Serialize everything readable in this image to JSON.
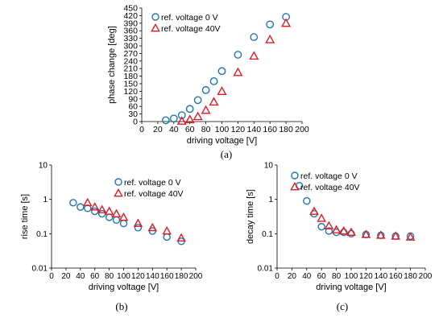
{
  "chart_data": [
    {
      "id": "a",
      "type": "scatter",
      "caption": "(a)",
      "xlabel": "driving voltage [V]",
      "ylabel": "phase change [deg]",
      "xlim": [
        0,
        200
      ],
      "ylim": [
        0,
        450
      ],
      "xticks": [
        0,
        20,
        40,
        60,
        80,
        100,
        120,
        140,
        160,
        180,
        200
      ],
      "yticks": [
        0,
        30,
        60,
        90,
        120,
        150,
        180,
        210,
        240,
        270,
        300,
        330,
        360,
        390,
        420,
        450
      ],
      "yscale": "linear",
      "legend": "top-left",
      "grid": false,
      "series": [
        {
          "name": "ref. voltage  0 V",
          "marker": "circle",
          "color": "#1f77b4",
          "x": [
            30,
            40,
            50,
            60,
            70,
            80,
            90,
            100,
            120,
            140,
            160,
            180
          ],
          "y": [
            5,
            12,
            25,
            50,
            85,
            125,
            160,
            200,
            265,
            335,
            385,
            415
          ]
        },
        {
          "name": "ref. voltage 40V",
          "marker": "triangle",
          "color": "#e01b24",
          "x": [
            50,
            60,
            70,
            80,
            90,
            100,
            120,
            140,
            160,
            180
          ],
          "y": [
            2,
            8,
            20,
            45,
            78,
            120,
            195,
            260,
            325,
            390
          ]
        }
      ]
    },
    {
      "id": "b",
      "type": "scatter",
      "caption": "(b)",
      "xlabel": "driving voltage [V]",
      "ylabel": "rise time [s]",
      "xlim": [
        0,
        200
      ],
      "ylim": [
        0.01,
        10
      ],
      "xticks": [
        0,
        20,
        40,
        60,
        80,
        100,
        120,
        140,
        160,
        180,
        200
      ],
      "yticks": [
        0.01,
        0.1,
        1,
        10
      ],
      "ytick_labels": [
        "0.01",
        "0.1",
        "1",
        "10"
      ],
      "yscale": "log",
      "legend": "top-right",
      "grid": false,
      "series": [
        {
          "name": "ref. voltage  0 V",
          "marker": "circle",
          "color": "#1f77b4",
          "x": [
            30,
            40,
            50,
            60,
            70,
            80,
            90,
            100,
            120,
            140,
            160,
            180
          ],
          "y": [
            0.8,
            0.6,
            0.55,
            0.45,
            0.38,
            0.3,
            0.25,
            0.2,
            0.15,
            0.12,
            0.08,
            0.06
          ]
        },
        {
          "name": "ref. voltage 40V",
          "marker": "triangle",
          "color": "#e01b24",
          "x": [
            50,
            60,
            70,
            80,
            90,
            100,
            120,
            140,
            160,
            180
          ],
          "y": [
            0.8,
            0.6,
            0.5,
            0.45,
            0.38,
            0.3,
            0.2,
            0.15,
            0.12,
            0.075
          ]
        }
      ]
    },
    {
      "id": "c",
      "type": "scatter",
      "caption": "(c)",
      "xlabel": "driving voltage [V]",
      "ylabel": "decay time [s]",
      "xlim": [
        0,
        200
      ],
      "ylim": [
        0.01,
        10
      ],
      "xticks": [
        0,
        20,
        40,
        60,
        80,
        100,
        120,
        140,
        160,
        180,
        200
      ],
      "yticks": [
        0.01,
        0.1,
        1,
        10
      ],
      "ytick_labels": [
        "0.01",
        "0.1",
        "1",
        "10"
      ],
      "yscale": "log",
      "legend": "top-right",
      "grid": false,
      "series": [
        {
          "name": "ref. voltage  0 V",
          "marker": "circle",
          "color": "#1f77b4",
          "x": [
            30,
            40,
            50,
            60,
            70,
            80,
            90,
            100,
            120,
            140,
            160,
            180
          ],
          "y": [
            2.5,
            0.9,
            0.38,
            0.16,
            0.12,
            0.11,
            0.11,
            0.1,
            0.095,
            0.09,
            0.085,
            0.085
          ]
        },
        {
          "name": "ref. voltage 40V",
          "marker": "triangle",
          "color": "#e01b24",
          "x": [
            50,
            60,
            70,
            80,
            90,
            100,
            120,
            140,
            160,
            180
          ],
          "y": [
            0.45,
            0.28,
            0.17,
            0.13,
            0.12,
            0.11,
            0.095,
            0.09,
            0.085,
            0.08
          ]
        }
      ]
    }
  ]
}
